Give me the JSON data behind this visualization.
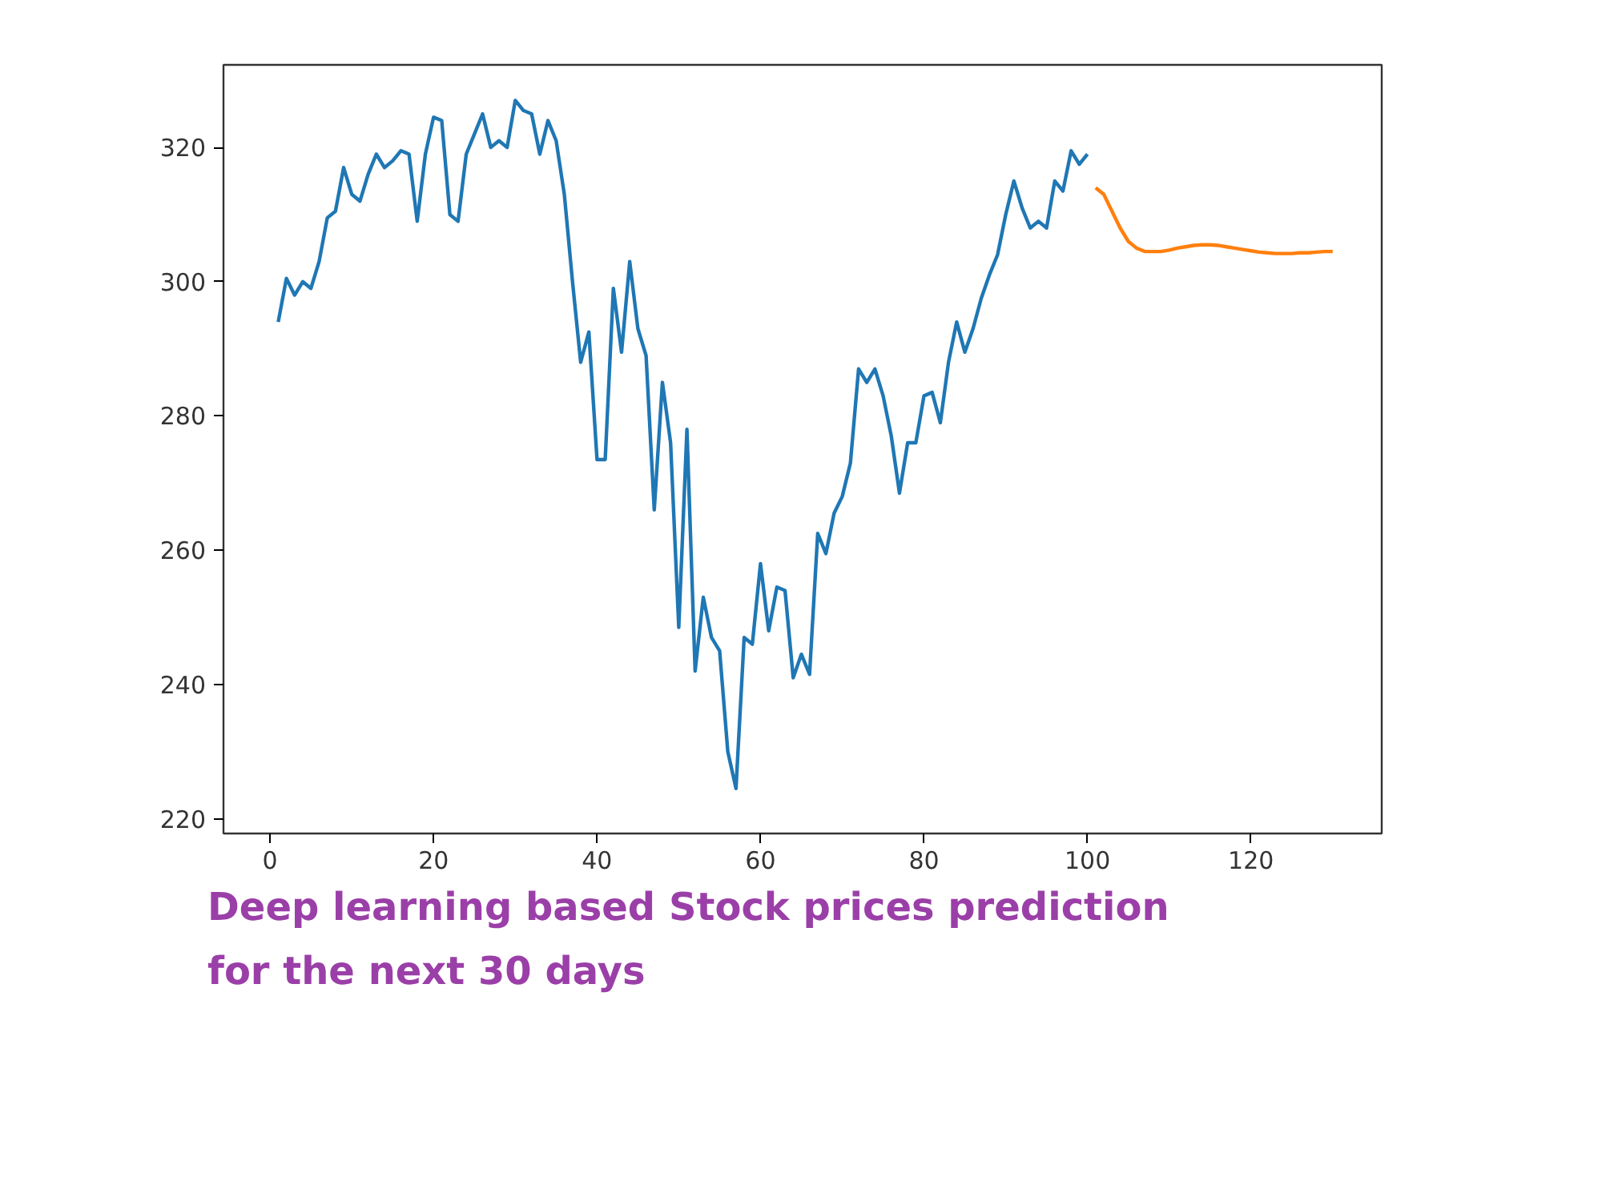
{
  "chart_data": {
    "type": "line",
    "title": "Deep learning based Stock prices prediction\nfor the next 30 days",
    "xlim": [
      -5.7,
      136
    ],
    "ylim": [
      217.8,
      332.3
    ],
    "xticks": [
      0,
      20,
      40,
      60,
      80,
      100,
      120
    ],
    "yticks": [
      220,
      240,
      260,
      280,
      300,
      320
    ],
    "grid": false,
    "series": [
      {
        "color": "#1f77b4",
        "x": [
          1,
          2,
          3,
          4,
          5,
          6,
          7,
          8,
          9,
          10,
          11,
          12,
          13,
          14,
          15,
          16,
          17,
          18,
          19,
          20,
          21,
          22,
          23,
          24,
          25,
          26,
          27,
          28,
          29,
          30,
          31,
          32,
          33,
          34,
          35,
          36,
          37,
          38,
          39,
          40,
          41,
          42,
          43,
          44,
          45,
          46,
          47,
          48,
          49,
          50,
          51,
          52,
          53,
          54,
          55,
          56,
          57,
          58,
          59,
          60,
          61,
          62,
          63,
          64,
          65,
          66,
          67,
          68,
          69,
          70,
          71,
          72,
          73,
          74,
          75,
          76,
          77,
          78,
          79,
          80,
          81,
          82,
          83,
          84,
          85,
          86,
          87,
          88,
          89,
          90,
          91,
          92,
          93,
          94,
          95,
          96,
          97,
          98,
          99,
          100
        ],
        "values": [
          294,
          300.5,
          298,
          300,
          299,
          303,
          309.5,
          310.5,
          317,
          313,
          312,
          316,
          319,
          317,
          318,
          319.5,
          319,
          309,
          319,
          324.5,
          324,
          310,
          309,
          319,
          322,
          325,
          320,
          321,
          320,
          327,
          325.5,
          325,
          319,
          324,
          321,
          313,
          300,
          288,
          292.5,
          273.5,
          273.5,
          299,
          289.5,
          303,
          293,
          289,
          266,
          285,
          276,
          248.5,
          278,
          242,
          253,
          247,
          245,
          230,
          224.5,
          247,
          246,
          258,
          248,
          254.5,
          254,
          241,
          244.5,
          241.5,
          262.5,
          259.5,
          265.5,
          268,
          273,
          287,
          285,
          287,
          283,
          277,
          268.5,
          276,
          276,
          283,
          283.5,
          279,
          288,
          294,
          289.5,
          293,
          297.5,
          301,
          304,
          310,
          315,
          311,
          308,
          309,
          308,
          315,
          313.5,
          319.5,
          317.5,
          319
        ]
      },
      {
        "color": "#ff7f0e",
        "x": [
          101,
          102,
          103,
          104,
          105,
          106,
          107,
          108,
          109,
          110,
          111,
          112,
          113,
          114,
          115,
          116,
          117,
          118,
          119,
          120,
          121,
          122,
          123,
          124,
          125,
          126,
          127,
          128,
          129,
          130
        ],
        "values": [
          314,
          313,
          310.5,
          308,
          306,
          305,
          304.5,
          304.5,
          304.5,
          304.7,
          305,
          305.2,
          305.4,
          305.5,
          305.5,
          305.4,
          305.2,
          305,
          304.8,
          304.6,
          304.4,
          304.3,
          304.2,
          304.2,
          304.2,
          304.3,
          304.3,
          304.4,
          304.5,
          304.5
        ]
      }
    ]
  }
}
